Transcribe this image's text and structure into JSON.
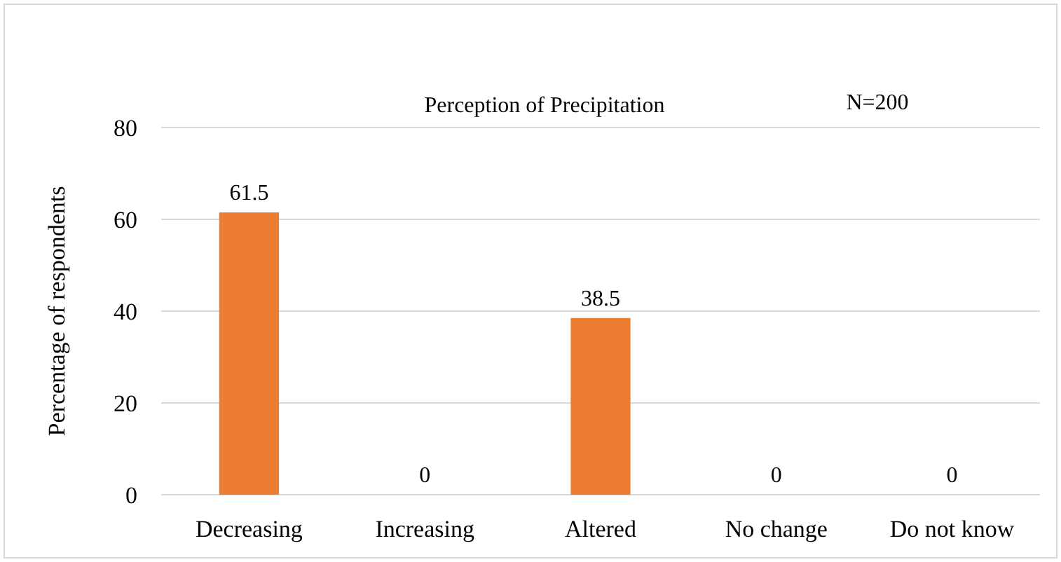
{
  "chart_data": {
    "type": "bar",
    "title": "Perception of Precipitation",
    "ylabel": "Percentage of respondents",
    "categories": [
      "Decreasing",
      "Increasing",
      "Altered",
      "No change",
      "Do not know"
    ],
    "values": [
      61.5,
      0,
      38.5,
      0,
      0
    ],
    "color": "#ed7d31",
    "ylim": [
      0,
      80
    ],
    "yticks": [
      0,
      20,
      40,
      60,
      80
    ],
    "grid": "y",
    "data_labels": true,
    "annotations": [
      "N=200"
    ]
  }
}
